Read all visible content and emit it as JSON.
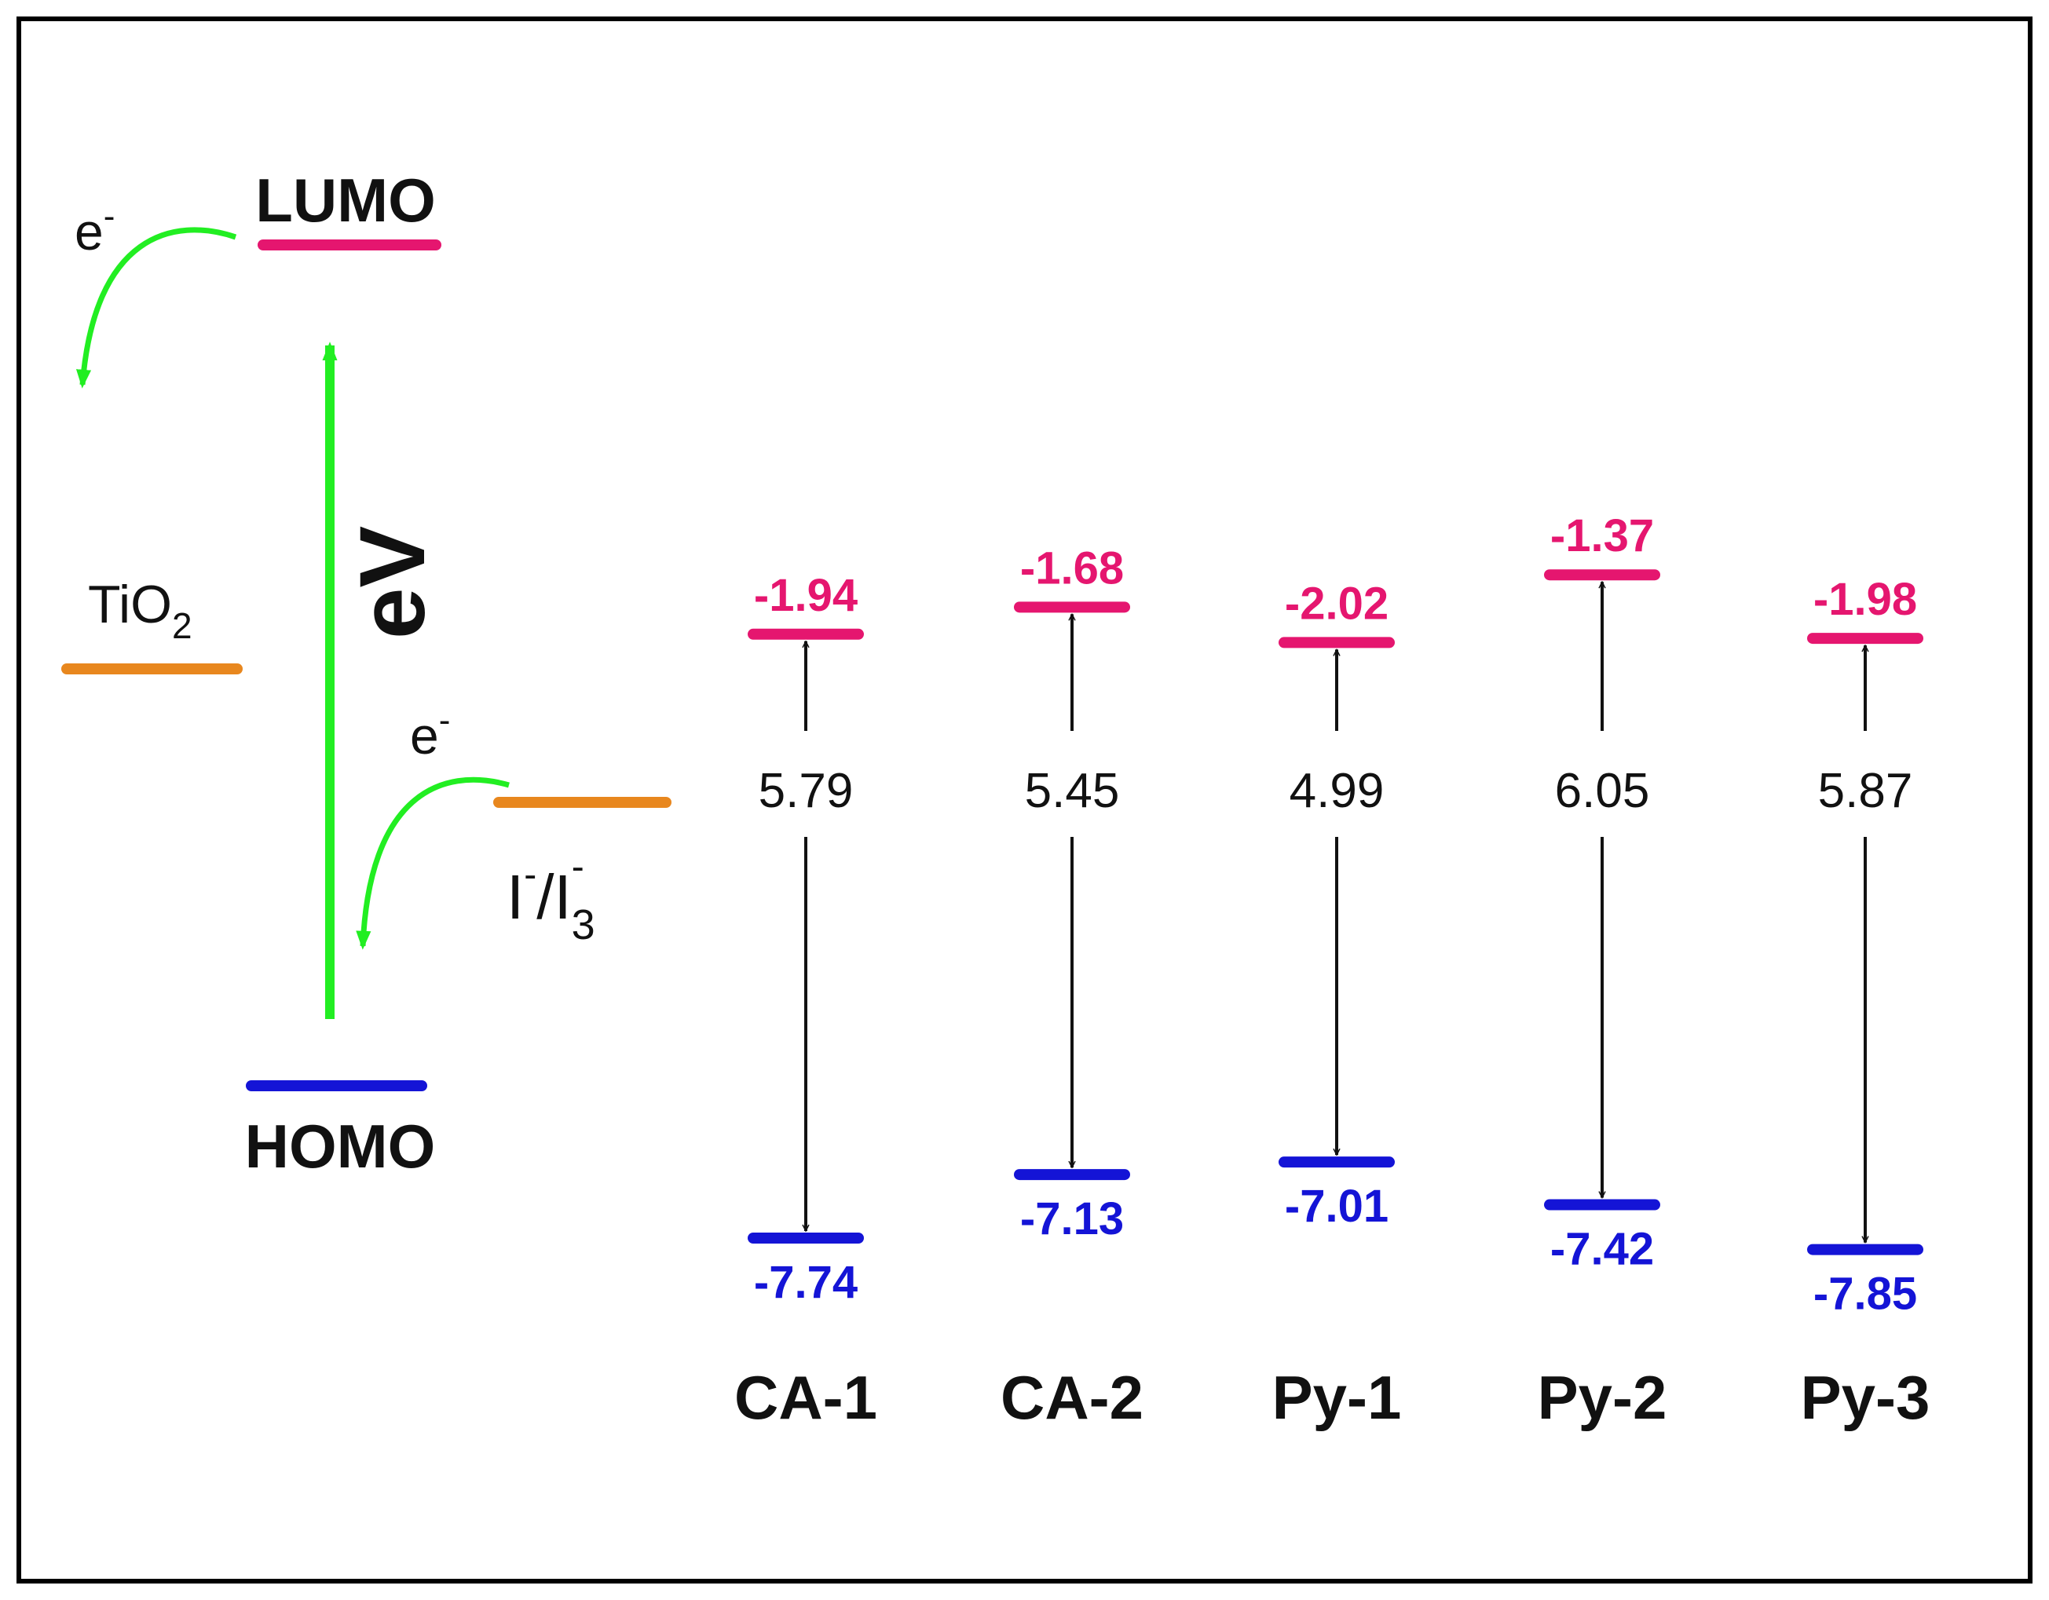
{
  "colors": {
    "lumo": "#e5166f",
    "homo": "#1414d6",
    "reference": "#e8871e",
    "arrow_green": "#22ee22",
    "text": "#111111",
    "frame": "#000000"
  },
  "schematic": {
    "lumo_label": "LUMO",
    "homo_label": "HOMO",
    "axis_label": "eV",
    "tio2_label": "TiO",
    "tio2_subscript": "2",
    "redox_label_part1": "I",
    "redox_sup1": "-",
    "redox_label_part2": "/I",
    "redox_sub2": "3",
    "redox_sup2": "-",
    "electron_label_top": "e",
    "electron_label_top_sup": "-",
    "electron_label_mid": "e",
    "electron_label_mid_sup": "-"
  },
  "chart_data": {
    "type": "energy-level diagram",
    "unit": "eV",
    "dyes": [
      {
        "name": "CA-1",
        "lumo": "-1.94",
        "homo": "-7.74",
        "gap": "5.79"
      },
      {
        "name": "CA-2",
        "lumo": "-1.68",
        "homo": "-7.13",
        "gap": "5.45"
      },
      {
        "name": "Py-1",
        "lumo": "-2.02",
        "homo": "-7.01",
        "gap": "4.99"
      },
      {
        "name": "Py-2",
        "lumo": "-1.37",
        "homo": "-7.42",
        "gap": "6.05"
      },
      {
        "name": "Py-3",
        "lumo": "-1.98",
        "homo": "-7.85",
        "gap": "5.87"
      }
    ]
  }
}
